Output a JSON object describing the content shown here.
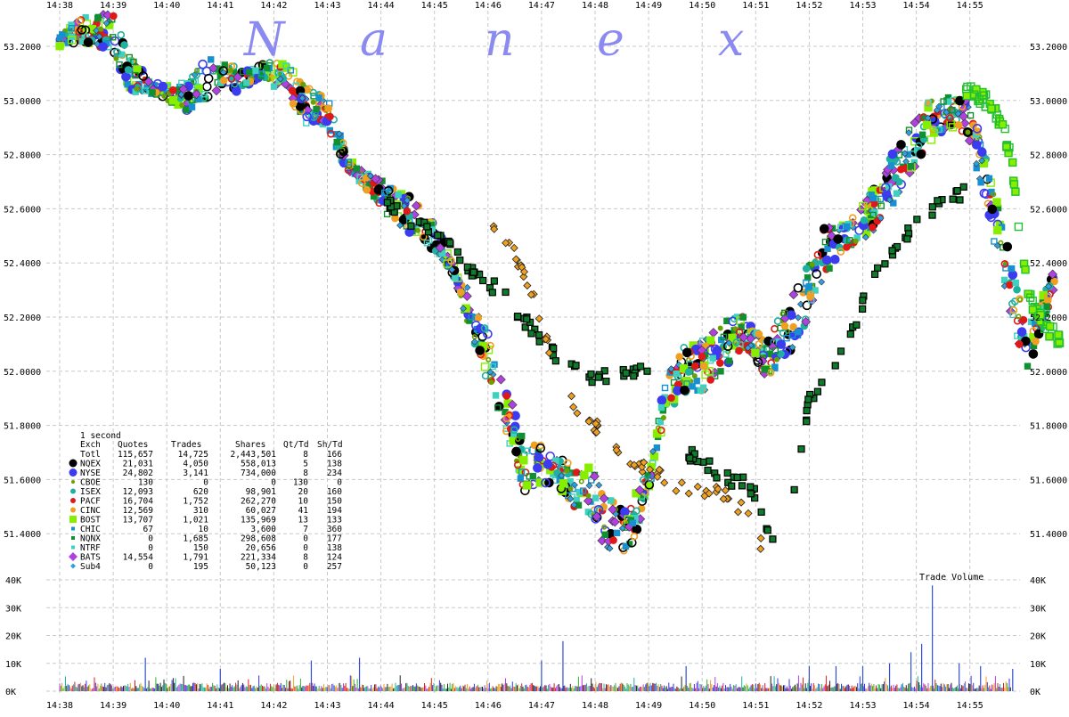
{
  "chart_data": {
    "type": "scatter",
    "watermark": [
      "N",
      "a",
      "n",
      "e",
      "x"
    ],
    "x_ticks": [
      "14:38",
      "14:39",
      "14:40",
      "14:41",
      "14:42",
      "14:43",
      "14:44",
      "14:45",
      "14:46",
      "14:47",
      "14:48",
      "14:49",
      "14:50",
      "14:51",
      "14:52",
      "14:53",
      "14:54",
      "14:55"
    ],
    "price_axis": {
      "ylim": [
        51.34,
        53.33
      ],
      "ticks": [
        "53.2000",
        "53.0000",
        "52.8000",
        "52.6000",
        "52.4000",
        "52.2000",
        "52.0000",
        "51.8000",
        "51.6000",
        "51.4000"
      ],
      "tick_values": [
        53.2,
        53.0,
        52.8,
        52.6,
        52.4,
        52.2,
        52.0,
        51.8,
        51.6,
        51.4
      ]
    },
    "volume_axis": {
      "label": "Trade Volume",
      "ylim": [
        0,
        40000
      ],
      "ticks": [
        "40K",
        "30K",
        "20K",
        "10K",
        "0K"
      ],
      "tick_values": [
        40000,
        30000,
        20000,
        10000,
        0
      ]
    },
    "grid": true,
    "colors": {
      "grid": "#c8c8c8",
      "axis_text": "#000000",
      "watermark": "#8a8af0",
      "volume_bar": "#203060",
      "volume_spike": "#3050d0"
    },
    "price_path": [
      [
        0.0,
        53.22
      ],
      [
        0.5,
        53.27
      ],
      [
        1.0,
        53.25
      ],
      [
        1.3,
        53.1
      ],
      [
        1.6,
        53.06
      ],
      [
        2.0,
        53.03
      ],
      [
        2.3,
        53.01
      ],
      [
        2.6,
        53.06
      ],
      [
        3.0,
        53.1
      ],
      [
        3.4,
        53.08
      ],
      [
        3.8,
        53.11
      ],
      [
        4.2,
        53.08
      ],
      [
        4.6,
        52.98
      ],
      [
        5.0,
        52.95
      ],
      [
        5.3,
        52.8
      ],
      [
        5.6,
        52.72
      ],
      [
        6.0,
        52.66
      ],
      [
        6.5,
        52.58
      ],
      [
        7.0,
        52.5
      ],
      [
        7.3,
        52.4
      ],
      [
        7.6,
        52.25
      ],
      [
        8.0,
        52.05
      ],
      [
        8.4,
        51.82
      ],
      [
        8.7,
        51.64
      ],
      [
        9.0,
        51.66
      ],
      [
        9.3,
        51.62
      ],
      [
        9.6,
        51.58
      ],
      [
        9.9,
        51.55
      ],
      [
        10.2,
        51.45
      ],
      [
        10.6,
        51.4
      ],
      [
        11.0,
        51.6
      ],
      [
        11.3,
        51.9
      ],
      [
        11.6,
        52.0
      ],
      [
        12.0,
        52.02
      ],
      [
        12.4,
        52.1
      ],
      [
        12.8,
        52.15
      ],
      [
        13.2,
        52.05
      ],
      [
        13.6,
        52.15
      ],
      [
        14.0,
        52.3
      ],
      [
        14.3,
        52.45
      ],
      [
        14.7,
        52.5
      ],
      [
        15.0,
        52.55
      ],
      [
        15.4,
        52.65
      ],
      [
        15.8,
        52.8
      ],
      [
        16.2,
        52.92
      ],
      [
        16.6,
        52.96
      ],
      [
        17.0,
        52.92
      ],
      [
        17.3,
        52.7
      ],
      [
        17.6,
        52.45
      ],
      [
        17.9,
        52.2
      ],
      [
        18.1,
        52.08
      ],
      [
        18.4,
        52.25
      ],
      [
        18.6,
        52.35
      ]
    ],
    "stale_exchange_paths": [
      {
        "exchange": "NQNX",
        "points": [
          [
            6.1,
            52.62
          ],
          [
            7.0,
            52.5
          ],
          [
            7.4,
            52.44
          ],
          [
            7.8,
            52.35
          ],
          [
            8.2,
            52.3
          ],
          [
            8.6,
            52.2
          ],
          [
            9.0,
            52.12
          ],
          [
            9.3,
            52.05
          ],
          [
            9.6,
            52.0
          ],
          [
            9.9,
            51.98
          ],
          [
            10.3,
            51.98
          ],
          [
            10.6,
            52.0
          ],
          [
            11.0,
            52.01
          ]
        ]
      },
      {
        "exchange": "NQNX",
        "points": [
          [
            11.7,
            51.7
          ],
          [
            12.1,
            51.65
          ],
          [
            12.4,
            51.6
          ],
          [
            12.7,
            51.6
          ],
          [
            13.0,
            51.55
          ],
          [
            13.2,
            51.4
          ],
          [
            13.4,
            51.38
          ],
          [
            13.7,
            51.55
          ],
          [
            14.0,
            51.9
          ],
          [
            14.4,
            52.0
          ],
          [
            14.8,
            52.15
          ],
          [
            15.2,
            52.35
          ],
          [
            15.6,
            52.45
          ],
          [
            16.0,
            52.55
          ],
          [
            16.5,
            52.62
          ],
          [
            16.9,
            52.66
          ]
        ]
      },
      {
        "exchange": "CINC",
        "points": [
          [
            8.0,
            52.55
          ],
          [
            8.4,
            52.48
          ],
          [
            8.8,
            52.3
          ],
          [
            9.2,
            52.05
          ],
          [
            9.6,
            51.88
          ],
          [
            10.0,
            51.8
          ],
          [
            10.4,
            51.72
          ],
          [
            10.8,
            51.66
          ],
          [
            11.2,
            51.62
          ],
          [
            11.6,
            51.57
          ],
          [
            12.0,
            51.55
          ],
          [
            12.4,
            51.55
          ],
          [
            12.8,
            51.48
          ],
          [
            13.1,
            51.36
          ]
        ]
      },
      {
        "exchange": "BOST",
        "points": [
          [
            16.9,
            53.04
          ],
          [
            17.3,
            53.0
          ],
          [
            17.6,
            52.92
          ],
          [
            17.8,
            52.75
          ],
          [
            17.9,
            52.55
          ],
          [
            18.0,
            52.4
          ],
          [
            18.1,
            52.28
          ],
          [
            18.3,
            52.2
          ],
          [
            18.5,
            52.15
          ],
          [
            18.7,
            52.11
          ]
        ]
      }
    ],
    "volume_spikes": [
      [
        1.6,
        12000
      ],
      [
        3.0,
        8000
      ],
      [
        4.7,
        11000
      ],
      [
        5.6,
        12000
      ],
      [
        9.0,
        11000
      ],
      [
        9.4,
        18000
      ],
      [
        11.7,
        9000
      ],
      [
        14.0,
        9000
      ],
      [
        14.5,
        9000
      ],
      [
        15.0,
        9000
      ],
      [
        15.5,
        10000
      ],
      [
        15.9,
        14000
      ],
      [
        16.1,
        17000
      ],
      [
        16.3,
        38000
      ],
      [
        16.8,
        10000
      ],
      [
        17.2,
        9000
      ],
      [
        17.8,
        8000
      ]
    ],
    "legend": {
      "interval": "1 second",
      "columns": [
        "Exch",
        "Quotes",
        "Trades",
        "Shares",
        "Qt/Td",
        "Sh/Td"
      ],
      "rows": [
        {
          "exch": "Totl",
          "quotes": "115,657",
          "trades": "14,725",
          "shares": "2,443,501",
          "qt_td": "8",
          "sh_td": "166",
          "color": "",
          "marker": "none"
        },
        {
          "exch": "NQEX",
          "quotes": "21,031",
          "trades": "4,050",
          "shares": "558,013",
          "qt_td": "5",
          "sh_td": "138",
          "color": "#000000",
          "marker": "circle-lg"
        },
        {
          "exch": "NYSE",
          "quotes": "24,802",
          "trades": "3,141",
          "shares": "734,000",
          "qt_td": "8",
          "sh_td": "234",
          "color": "#3b3bf0",
          "marker": "circle-lg"
        },
        {
          "exch": "CBOE",
          "quotes": "130",
          "trades": "0",
          "shares": "0",
          "qt_td": "130",
          "sh_td": "0",
          "color": "#6aa000",
          "marker": "circle-sm"
        },
        {
          "exch": "ISEX",
          "quotes": "12,093",
          "trades": "620",
          "shares": "98,901",
          "qt_td": "20",
          "sh_td": "160",
          "color": "#20b0a0",
          "marker": "circle"
        },
        {
          "exch": "PACF",
          "quotes": "16,704",
          "trades": "1,752",
          "shares": "262,270",
          "qt_td": "10",
          "sh_td": "150",
          "color": "#e01818",
          "marker": "circle"
        },
        {
          "exch": "CINC",
          "quotes": "12,569",
          "trades": "310",
          "shares": "60,027",
          "qt_td": "41",
          "sh_td": "194",
          "color": "#f0a020",
          "marker": "circle"
        },
        {
          "exch": "BOST",
          "quotes": "13,707",
          "trades": "1,021",
          "shares": "135,969",
          "qt_td": "13",
          "sh_td": "133",
          "color": "#88ee00",
          "marker": "square-lg"
        },
        {
          "exch": "CHIC",
          "quotes": "67",
          "trades": "10",
          "shares": "3,600",
          "qt_td": "7",
          "sh_td": "360",
          "color": "#1890d0",
          "marker": "square-sm"
        },
        {
          "exch": "NQNX",
          "quotes": "0",
          "trades": "1,685",
          "shares": "298,608",
          "qt_td": "0",
          "sh_td": "177",
          "color": "#109030",
          "marker": "square-sm"
        },
        {
          "exch": "NTRF",
          "quotes": "0",
          "trades": "150",
          "shares": "20,656",
          "qt_td": "0",
          "sh_td": "138",
          "color": "#40d0c0",
          "marker": "square-sm"
        },
        {
          "exch": "BATS",
          "quotes": "14,554",
          "trades": "1,791",
          "shares": "221,334",
          "qt_td": "8",
          "sh_td": "124",
          "color": "#b040e0",
          "marker": "diamond"
        },
        {
          "exch": "Sub4",
          "quotes": "0",
          "trades": "195",
          "shares": "50,123",
          "qt_td": "0",
          "sh_td": "257",
          "color": "#30a0e0",
          "marker": "diamond-sm"
        }
      ]
    }
  }
}
